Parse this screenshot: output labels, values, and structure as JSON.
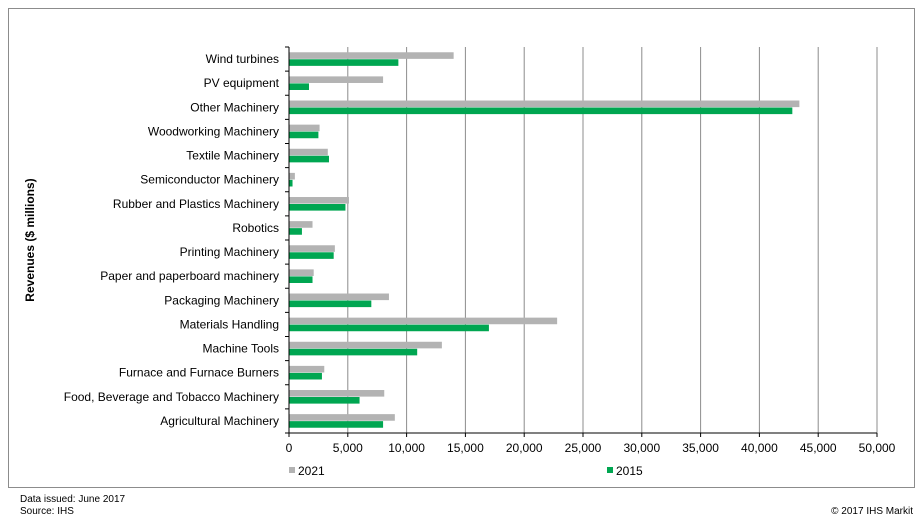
{
  "chart_data": {
    "type": "bar",
    "orientation": "horizontal",
    "title": "",
    "xlabel": "",
    "ylabel": "Revenues ($ millions)",
    "categories": [
      "Wind turbines",
      "PV equipment",
      "Other Machinery",
      "Woodworking Machinery",
      "Textile Machinery",
      "Semiconductor Machinery",
      "Rubber and Plastics Machinery",
      "Robotics",
      "Printing Machinery",
      "Paper and paperboard machinery",
      "Packaging Machinery",
      "Materials Handling",
      "Machine Tools",
      "Furnace and Furnace Burners",
      "Food, Beverage and Tobacco Machinery",
      "Agricultural Machinery"
    ],
    "series": [
      {
        "name": "2021",
        "color": "#b3b3b3",
        "values": [
          14000,
          8000,
          43400,
          2600,
          3300,
          500,
          5100,
          2000,
          3900,
          2100,
          8500,
          22800,
          13000,
          3000,
          8100,
          9000
        ]
      },
      {
        "name": "2015",
        "color": "#00a651",
        "values": [
          9300,
          1700,
          42800,
          2500,
          3400,
          300,
          4800,
          1100,
          3800,
          2000,
          7000,
          17000,
          10900,
          2800,
          6000,
          8000
        ]
      }
    ],
    "xlim": [
      0,
      50000
    ],
    "xticks": [
      0,
      5000,
      10000,
      15000,
      20000,
      25000,
      30000,
      35000,
      40000,
      45000,
      50000
    ],
    "xtick_labels": [
      "0",
      "5,000",
      "10,000",
      "15,000",
      "20,000",
      "25,000",
      "30,000",
      "35,000",
      "40,000",
      "45,000",
      "50,000"
    ],
    "grid": "vertical",
    "legend_position": "bottom"
  },
  "footer": {
    "issued": "Data issued: June 2017",
    "source": "Source: IHS",
    "copyright": "© 2017 IHS Markit"
  }
}
